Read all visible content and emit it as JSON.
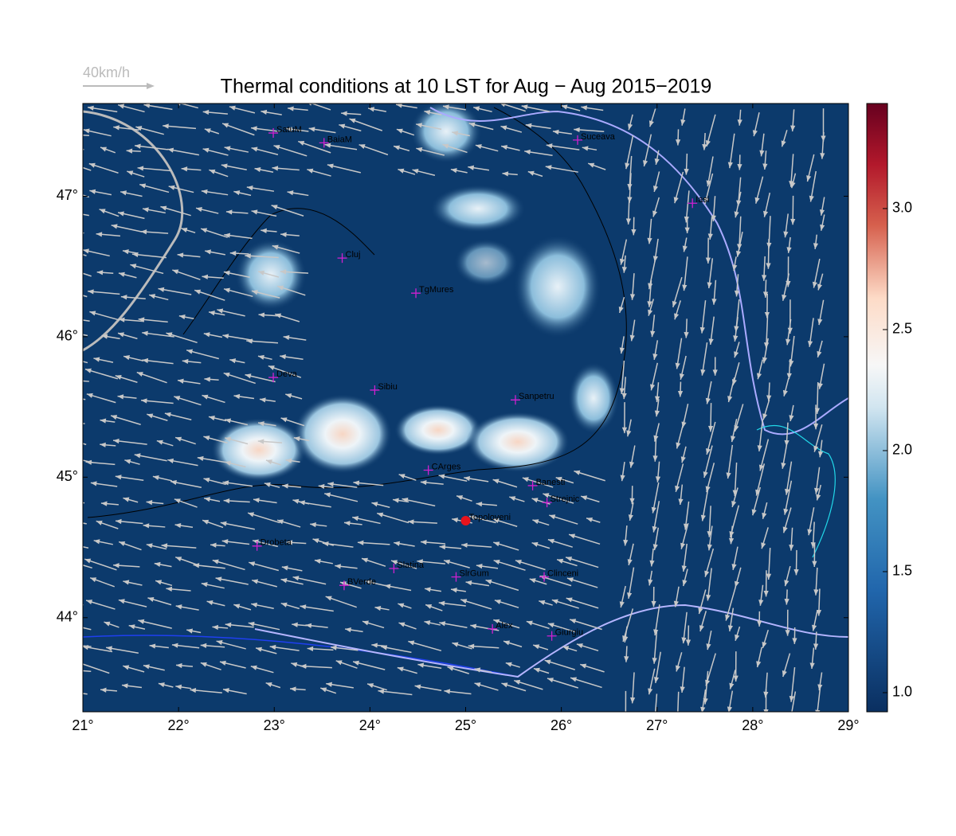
{
  "title": "Thermal conditions at 10 LST for Aug − Aug  2015−2019",
  "wind_scale_label": "40km/h",
  "map": {
    "lonlim": [
      21,
      29
    ],
    "latlim": [
      43.33,
      47.66
    ],
    "lonticks": [
      {
        "value": 21,
        "label": "21°"
      },
      {
        "value": 22,
        "label": "22°"
      },
      {
        "value": 23,
        "label": "23°"
      },
      {
        "value": 24,
        "label": "24°"
      },
      {
        "value": 25,
        "label": "25°"
      },
      {
        "value": 26,
        "label": "26°"
      },
      {
        "value": 27,
        "label": "27°"
      },
      {
        "value": 28,
        "label": "28°"
      },
      {
        "value": 29,
        "label": "29°"
      }
    ],
    "latticks": [
      {
        "value": 44,
        "label": "44°"
      },
      {
        "value": 45,
        "label": "45°"
      },
      {
        "value": 46,
        "label": "46°"
      },
      {
        "value": 47,
        "label": "47°"
      }
    ],
    "background_color": "#0c3a6c",
    "marker_color": "#d020d0"
  },
  "colorbar": {
    "lim": [
      0.921,
      3.434
    ],
    "ticks": [
      {
        "value": 1,
        "label": "1.0"
      },
      1.5,
      {
        "value": 2,
        "label": "2.0"
      },
      2.5,
      {
        "value": 3,
        "label": "3.0"
      }
    ]
  },
  "cities": [
    {
      "name": "SatuM",
      "lon": 22.99,
      "lat": 47.45
    },
    {
      "name": "BaiaM",
      "lon": 23.52,
      "lat": 47.38
    },
    {
      "name": "Suceava",
      "lon": 26.17,
      "lat": 47.4
    },
    {
      "name": "Iasi",
      "lon": 27.37,
      "lat": 46.95
    },
    {
      "name": "Cluj",
      "lon": 23.71,
      "lat": 46.56
    },
    {
      "name": "TgMures",
      "lon": 24.48,
      "lat": 46.31
    },
    {
      "name": "Deva",
      "lon": 22.99,
      "lat": 45.71
    },
    {
      "name": "Sibiu",
      "lon": 24.05,
      "lat": 45.62
    },
    {
      "name": "Sanpetru",
      "lon": 25.52,
      "lat": 45.55
    },
    {
      "name": "CArges",
      "lon": 24.61,
      "lat": 45.05
    },
    {
      "name": "Banesti",
      "lon": 25.7,
      "lat": 44.94
    },
    {
      "name": "Strejnic",
      "lon": 25.85,
      "lat": 44.82
    },
    {
      "name": "Topoloveni",
      "lon": 25.0,
      "lat": 44.69,
      "color": "#e8141c"
    },
    {
      "name": "Drobeta",
      "lon": 22.82,
      "lat": 44.51
    },
    {
      "name": "Slatina",
      "lon": 24.25,
      "lat": 44.35
    },
    {
      "name": "SlrGum",
      "lon": 24.9,
      "lat": 44.29
    },
    {
      "name": "BVerde",
      "lon": 23.73,
      "lat": 44.23
    },
    {
      "name": "Clinceni",
      "lon": 25.82,
      "lat": 44.29
    },
    {
      "name": "Alex",
      "lon": 25.28,
      "lat": 43.92
    },
    {
      "name": "Giurgiu",
      "lon": 25.9,
      "lat": 43.87
    }
  ]
}
